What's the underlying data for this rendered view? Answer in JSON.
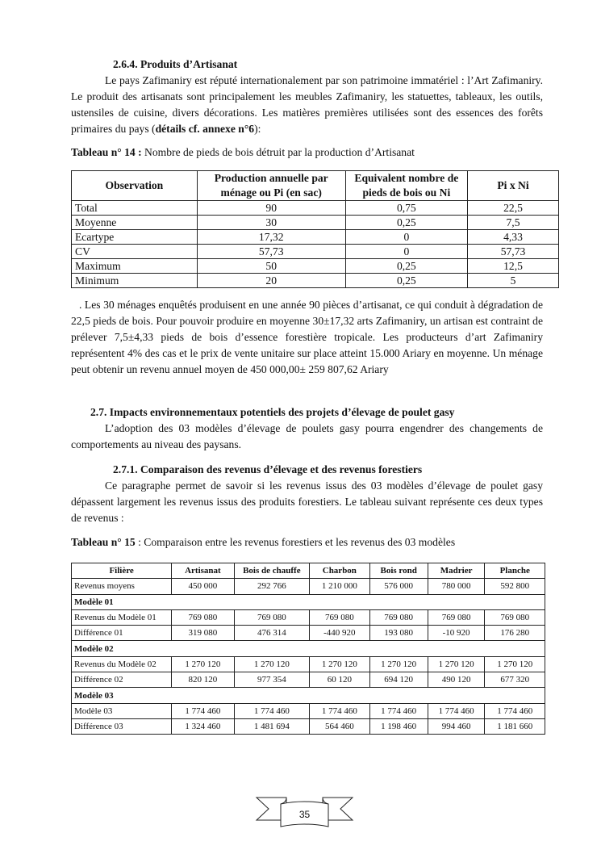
{
  "sec264": {
    "heading": "2.6.4. Produits d’Artisanat",
    "text_a": "Le pays Zafimaniry est réputé internationalement par son patrimoine immatériel : l’Art Zafimaniry. Le produit des artisanats sont principalement  les meubles Zafimaniry, les statuettes, tableaux, les outils, ustensiles de cuisine, divers décorations. Les matières premières utilisées sont des essences  des forêts primaires du pays (",
    "text_bold": "détails cf. annexe n°6",
    "text_b": "):"
  },
  "table14": {
    "caption_bold": "Tableau n° 14 :",
    "caption": " Nombre de pieds de bois détruit par la production d’Artisanat",
    "headers": [
      "Observation",
      "Production annuelle par ménage ou Pi (en sac)",
      "Equivalent nombre de pieds de bois ou Ni",
      "Pi x Ni"
    ],
    "rows": [
      [
        "Total",
        "90",
        "0,75",
        "22,5"
      ],
      [
        "Moyenne",
        "30",
        "0,25",
        "7,5"
      ],
      [
        "Ecartype",
        "17,32",
        "0",
        "4,33"
      ],
      [
        "CV",
        "57,73",
        "0",
        "57,73"
      ],
      [
        "Maximum",
        "50",
        "0,25",
        "12,5"
      ],
      [
        "Minimum",
        "20",
        "0,25",
        "5"
      ]
    ]
  },
  "para_after14": ". Les 30 ménages enquêtés produisent en une année 90 pièces d’artisanat, ce qui conduit à dégradation de 22,5 pieds de bois. Pour pouvoir produire en moyenne 30±17,32 arts Zafimaniry, un artisan est contraint de prélever 7,5±4,33 pieds de bois d’essence forestière tropicale. Les producteurs d’art Zafimaniry  représentent 4% des cas et le prix de vente unitaire sur place atteint 15.000 Ariary en moyenne. Un ménage peut obtenir un revenu annuel moyen de   450 000,00± 259 807,62 Ariary",
  "sec27": {
    "heading": "2.7.  Impacts environnementaux potentiels des projets d’élevage de poulet gasy",
    "text": "L’adoption des 03 modèles d’élevage de poulets gasy pourra engendrer  des changements de comportements au niveau des paysans."
  },
  "sec271": {
    "heading": "2.7.1.  Comparaison des revenus d’élevage et des revenus forestiers",
    "text": "Ce paragraphe permet de savoir si les revenus issus des 03 modèles d’élevage de poulet gasy dépassent largement les revenus issus des produits forestiers. Le tableau suivant représente ces deux types de revenus :"
  },
  "table15": {
    "caption_bold": "Tableau n° 15",
    "caption": " : Comparaison entre les revenus forestiers et les revenus des 03 modèles",
    "headers": [
      "Filière",
      "Artisanat",
      "Bois de chauffe",
      "Charbon",
      "Bois rond",
      "Madrier",
      "Planche"
    ],
    "rows": [
      {
        "cells": [
          "Revenus moyens",
          "450 000",
          "292 766",
          "1 210 000",
          "576 000",
          "780 000",
          "592 800"
        ]
      },
      {
        "section": "Modèle 01"
      },
      {
        "cells": [
          "Revenus du Modèle 01",
          "769 080",
          "769 080",
          "769 080",
          "769 080",
          "769 080",
          "769 080"
        ]
      },
      {
        "cells": [
          "Différence 01",
          "319 080",
          "476 314",
          "-440 920",
          "193 080",
          "-10 920",
          "176 280"
        ]
      },
      {
        "section": "Modèle 02"
      },
      {
        "cells": [
          "Revenus du Modèle 02",
          "1 270 120",
          "1 270 120",
          "1 270 120",
          "1 270 120",
          "1 270 120",
          "1 270 120"
        ]
      },
      {
        "cells": [
          "Différence 02",
          "820 120",
          "977 354",
          "60 120",
          "694 120",
          "490 120",
          "677 320"
        ]
      },
      {
        "section": "Modèle 03"
      },
      {
        "cells": [
          "Modèle 03",
          "1 774 460",
          "1 774 460",
          "1 774 460",
          "1 774 460",
          "1 774 460",
          "1 774 460"
        ]
      },
      {
        "cells": [
          "Différence 03",
          "1 324 460",
          "1 481 694",
          "564 460",
          "1 198 460",
          "994 460",
          "1 181 660"
        ]
      }
    ]
  },
  "footer": {
    "page_number": "35"
  }
}
